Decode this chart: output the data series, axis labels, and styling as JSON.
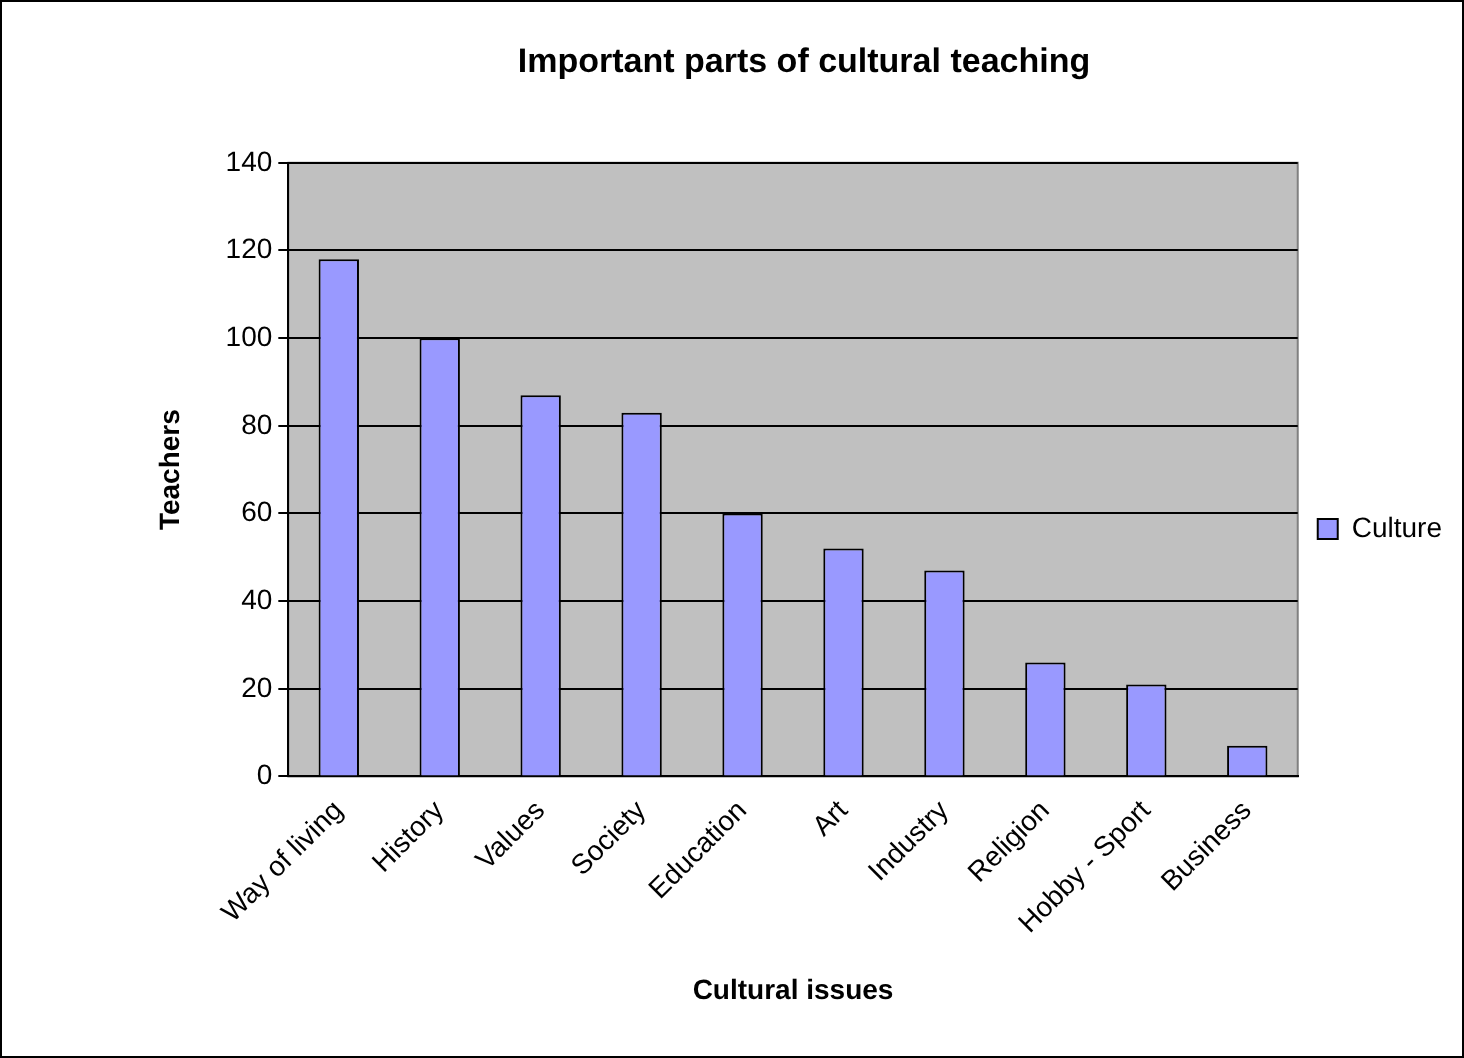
{
  "chart_data": {
    "type": "bar",
    "title": "Important parts of cultural teaching",
    "xlabel": "Cultural issues",
    "ylabel": "Teachers",
    "categories": [
      "Way of living",
      "History",
      "Values",
      "Society",
      "Education",
      "Art",
      "Industry",
      "Religion",
      "Hobby - Sport",
      "Business"
    ],
    "series": [
      {
        "name": "Culture",
        "color": "#9999ff",
        "values": [
          118,
          100,
          87,
          83,
          60,
          52,
          47,
          26,
          21,
          7
        ]
      }
    ],
    "ylim": [
      0,
      140
    ],
    "yticks": [
      0,
      20,
      40,
      60,
      80,
      100,
      120,
      140
    ],
    "grid": "y",
    "legend": "right"
  }
}
